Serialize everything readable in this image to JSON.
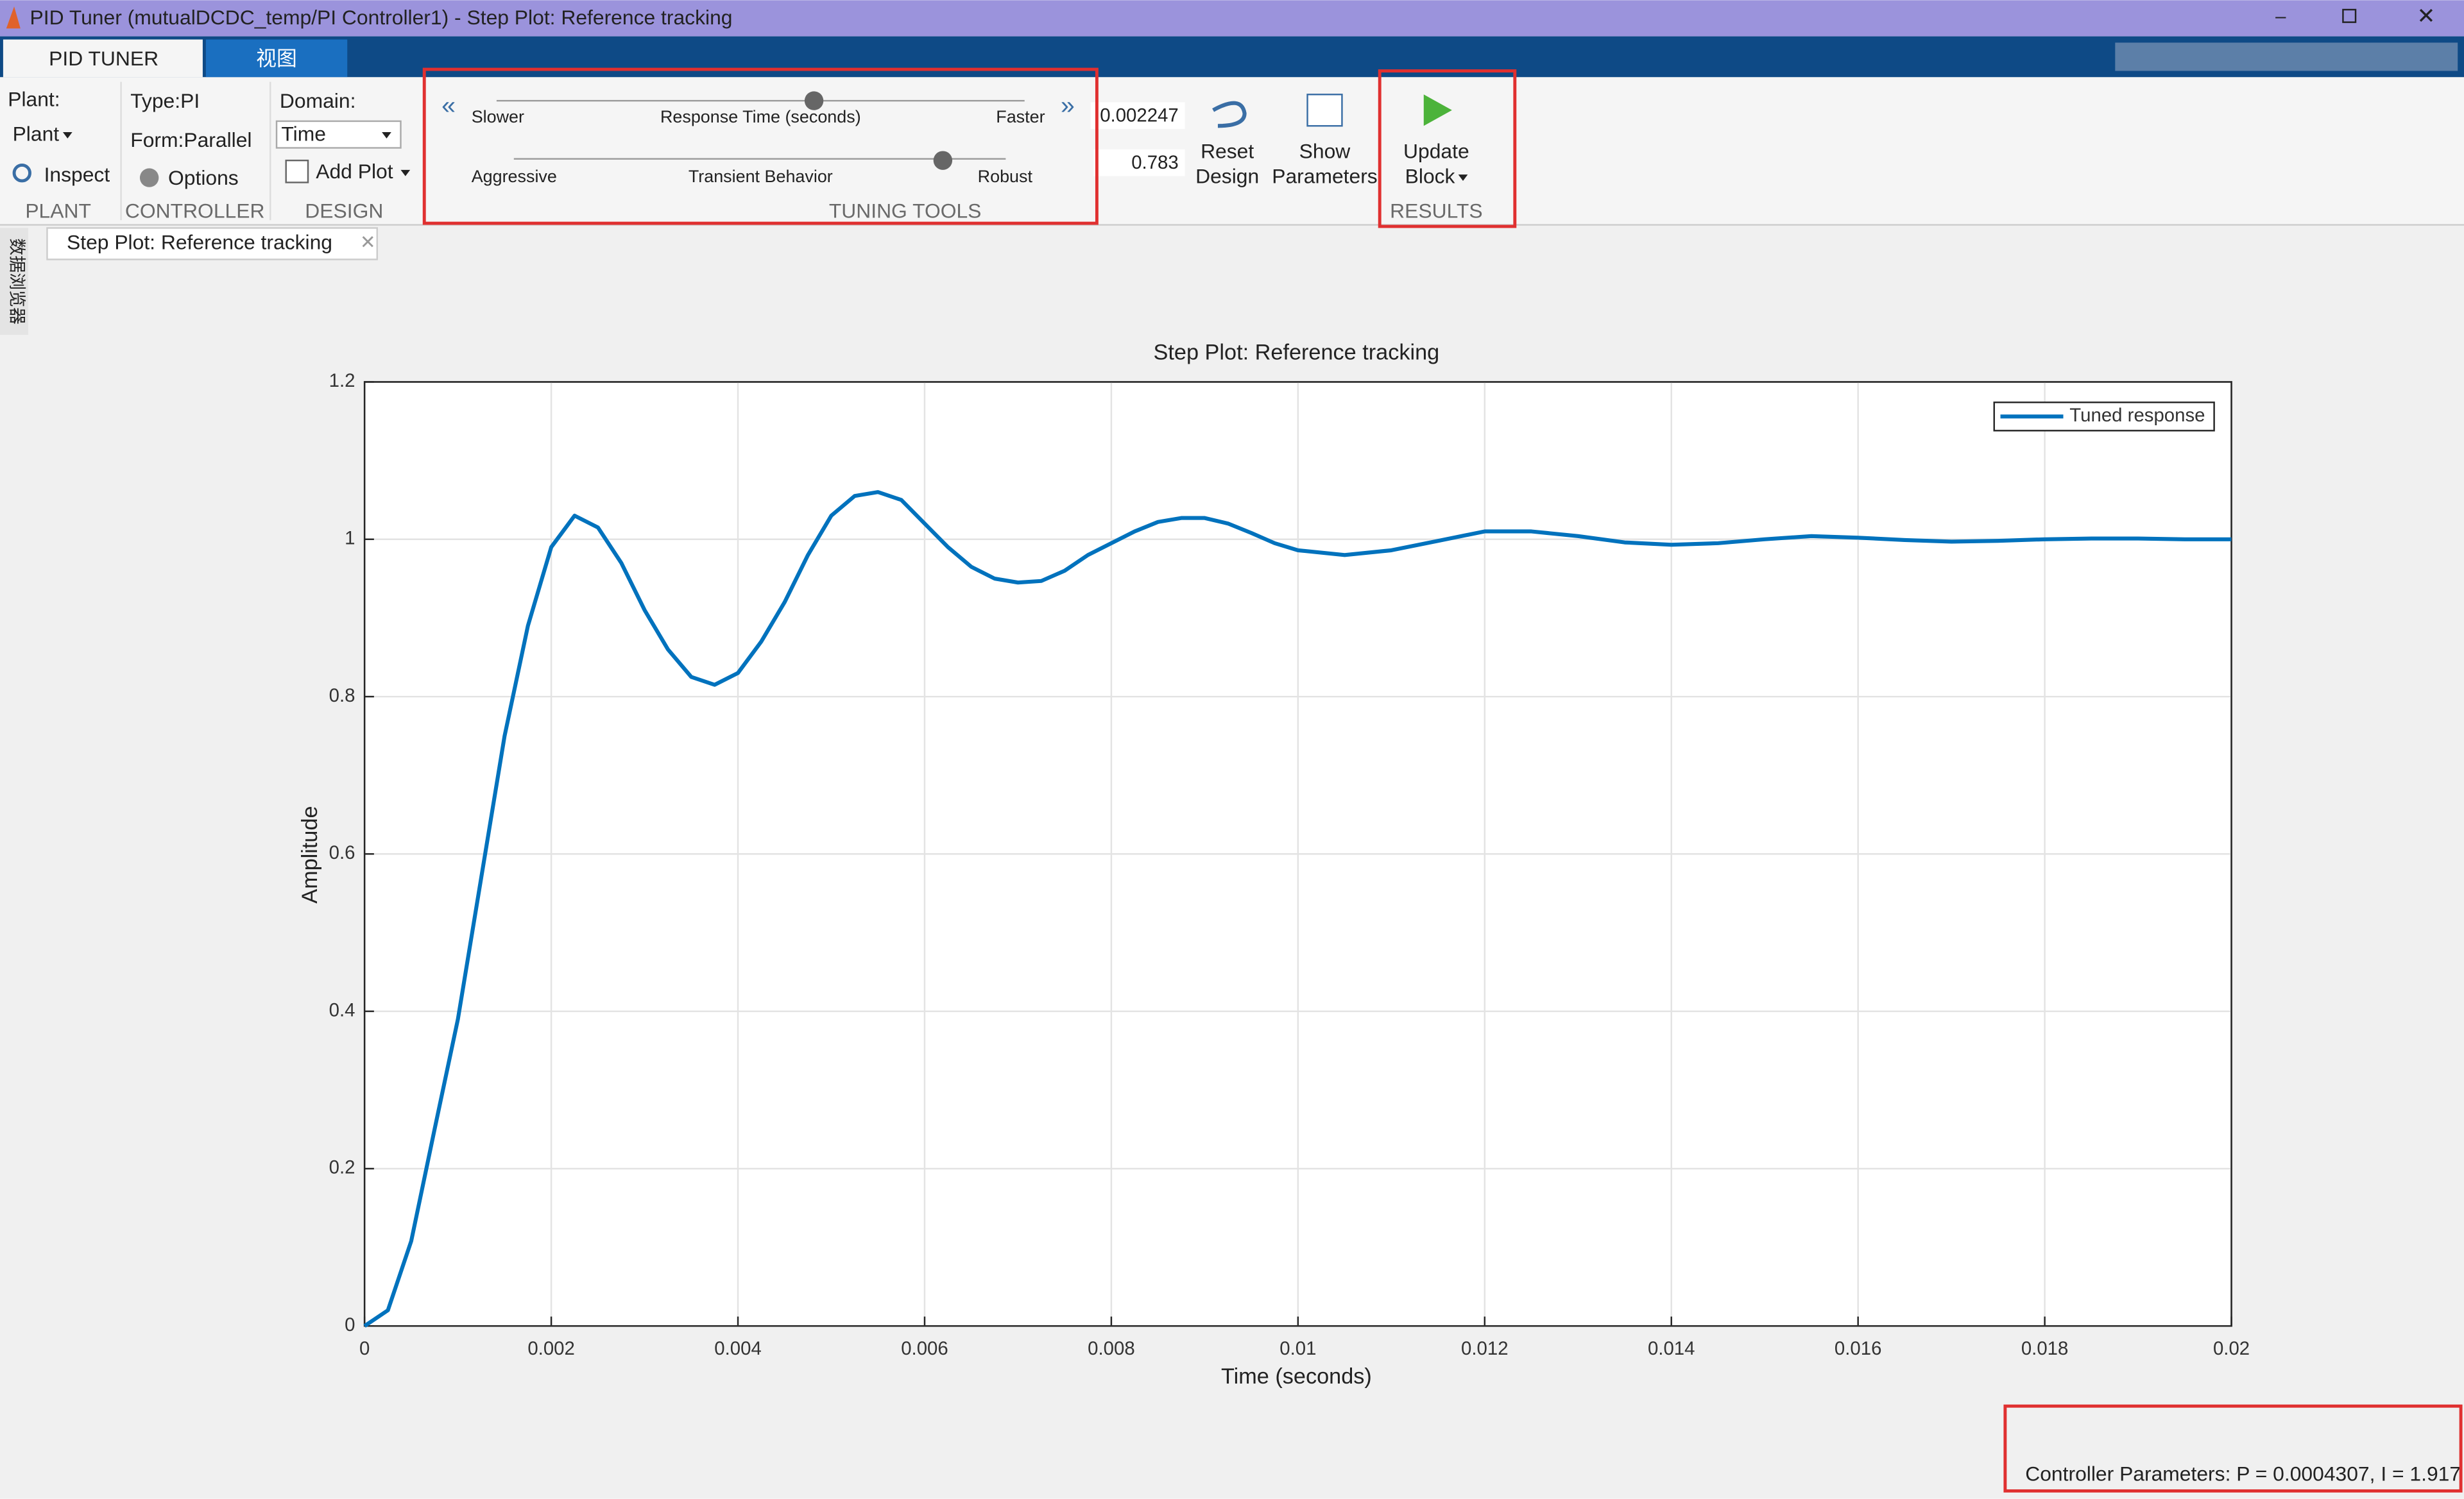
{
  "window": {
    "title": "PID Tuner (mutualDCDC_temp/PI Controller1) - Step Plot: Reference tracking"
  },
  "tabs": [
    "PID TUNER",
    "视图"
  ],
  "plant": {
    "label": "Plant:",
    "button": "Plant",
    "inspect": "Inspect",
    "section": "PLANT"
  },
  "controller": {
    "type": "Type:PI",
    "form": "Form:Parallel",
    "options": "Options",
    "section": "CONTROLLER"
  },
  "design": {
    "domain_label": "Domain:",
    "domain": "Time",
    "add_plot": "Add Plot",
    "section": "DESIGN"
  },
  "tuning": {
    "slower": "Slower",
    "response_time": "Response Time (seconds)",
    "faster": "Faster",
    "response_value": "0.002247",
    "aggressive": "Aggressive",
    "transient": "Transient Behavior",
    "robust": "Robust",
    "transient_value": "0.783",
    "section": "TUNING TOOLS"
  },
  "reset": [
    "Reset",
    "Design"
  ],
  "show": [
    "Show",
    "Parameters"
  ],
  "update": [
    "Update",
    "Block"
  ],
  "results": "RESULTS",
  "document_tab": "Step Plot: Reference tracking",
  "side_panel": "数据浏览器",
  "status": "Controller Parameters: P = 0.0004307, I = 1.917",
  "chart_data": {
    "type": "line",
    "title": "Step Plot: Reference tracking",
    "x_label": "Time (seconds)",
    "y_label": "Amplitude",
    "x": [
      0,
      0.00025,
      0.0005,
      0.00075,
      0.001,
      0.00125,
      0.0015,
      0.00175,
      0.002,
      0.00225,
      0.0025,
      0.00275,
      0.003,
      0.00325,
      0.0035,
      0.00375,
      0.004,
      0.00425,
      0.0045,
      0.00475,
      0.005,
      0.00525,
      0.0055,
      0.00575,
      0.006,
      0.00625,
      0.0065,
      0.00675,
      0.007,
      0.00725,
      0.0075,
      0.00775,
      0.008,
      0.00825,
      0.0085,
      0.00875,
      0.009,
      0.00925,
      0.0095,
      0.00975,
      0.01,
      0.0105,
      0.011,
      0.0115,
      0.012,
      0.0125,
      0.013,
      0.0135,
      0.014,
      0.0145,
      0.015,
      0.0155,
      0.016,
      0.0165,
      0.017,
      0.0175,
      0.018,
      0.0185,
      0.019,
      0.0195,
      0.02
    ],
    "series": [
      {
        "name": "Tuned response",
        "color": "#0072bd",
        "values": [
          0,
          0.02,
          0.108,
          0.25,
          0.39,
          0.57,
          0.75,
          0.89,
          0.99,
          1.03,
          1.015,
          0.97,
          0.91,
          0.86,
          0.825,
          0.815,
          0.83,
          0.87,
          0.92,
          0.98,
          1.03,
          1.055,
          1.06,
          1.05,
          1.02,
          0.99,
          0.965,
          0.95,
          0.945,
          0.947,
          0.96,
          0.98,
          0.995,
          1.01,
          1.022,
          1.027,
          1.027,
          1.02,
          1.008,
          0.995,
          0.986,
          0.98,
          0.986,
          0.998,
          1.01,
          1.01,
          1.004,
          0.996,
          0.993,
          0.995,
          1.0,
          1.004,
          1.002,
          0.999,
          0.997,
          0.998,
          1.0,
          1.001,
          1.001,
          1.0,
          1.0
        ]
      }
    ],
    "xlim": [
      0,
      0.02
    ],
    "xticks": [
      0,
      0.002,
      0.004,
      0.006,
      0.008,
      0.01,
      0.012,
      0.014,
      0.016,
      0.018,
      0.02
    ],
    "ylim": [
      0,
      1.2
    ],
    "yticks": [
      0,
      0.2,
      0.4,
      0.6,
      0.8,
      1,
      1.2
    ],
    "grid": true,
    "legend": "top-right"
  }
}
